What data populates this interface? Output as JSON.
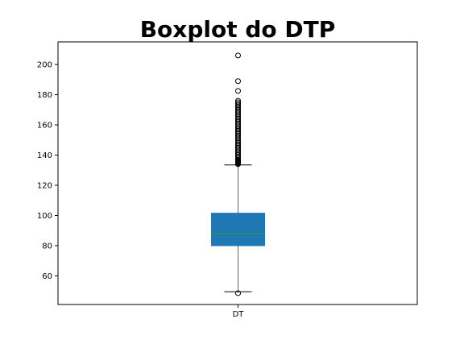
{
  "chart_data": {
    "type": "box",
    "title": "Boxplot do DTP",
    "xlabel": "",
    "ylabel": "",
    "categories": [
      "DT"
    ],
    "ylim": [
      41,
      215
    ],
    "yticks": [
      60,
      80,
      100,
      120,
      140,
      160,
      180,
      200
    ],
    "grid": false,
    "box": {
      "q1": 80,
      "median": 88,
      "q3": 101.5,
      "whisker_low": 49.5,
      "whisker_high": 133.5,
      "box_color": "#1f77b4",
      "median_color": "#2ca02c",
      "whisker_color": "#1f77b4"
    },
    "outliers": [
      48.5,
      134,
      134.5,
      135,
      135.5,
      136,
      136.5,
      137,
      138,
      139,
      140,
      141,
      142,
      143,
      144,
      145,
      146,
      147,
      148,
      149,
      150,
      151,
      152,
      153,
      154,
      155,
      156,
      157,
      158,
      159,
      160,
      161,
      162,
      163,
      164,
      165,
      166,
      167,
      168,
      169,
      170,
      171,
      172,
      173,
      174,
      175,
      176,
      182.5,
      189,
      206
    ]
  }
}
